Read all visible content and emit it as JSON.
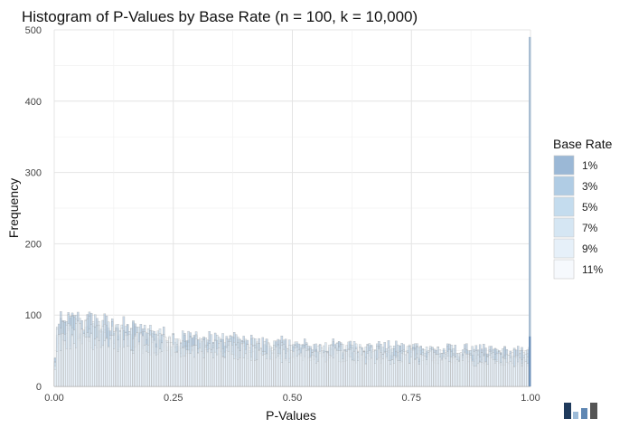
{
  "chart_data": {
    "type": "bar",
    "title": "Histogram of P-Values by Base Rate (n = 100, k = 10,000)",
    "xlabel": "P-Values",
    "ylabel": "Frequency",
    "xlim": [
      0,
      1
    ],
    "ylim": [
      0,
      500
    ],
    "x_ticks": [
      "0.00",
      "0.25",
      "0.50",
      "0.75",
      "1.00"
    ],
    "y_ticks": [
      "0",
      "100",
      "200",
      "300",
      "400",
      "500"
    ],
    "grid": true,
    "legend": {
      "title": "Base Rate",
      "position": "right",
      "entries": [
        {
          "label": "1%",
          "color": "#9bb8d6"
        },
        {
          "label": "3%",
          "color": "#b0cce4"
        },
        {
          "label": "5%",
          "color": "#c4dcee"
        },
        {
          "label": "7%",
          "color": "#d5e6f3"
        },
        {
          "label": "9%",
          "color": "#e6f0f9"
        },
        {
          "label": "11%",
          "color": "#f6f9fd"
        }
      ]
    },
    "bin_width": 0.004,
    "approx_typical_frequency": [
      {
        "x": 0.0,
        "y": 80
      },
      {
        "x": 0.05,
        "y": 90
      },
      {
        "x": 0.25,
        "y": 65
      },
      {
        "x": 0.5,
        "y": 55
      },
      {
        "x": 0.75,
        "y": 50
      },
      {
        "x": 0.996,
        "y": 45
      }
    ],
    "spike": {
      "x": 1.0,
      "y": 490
    }
  }
}
